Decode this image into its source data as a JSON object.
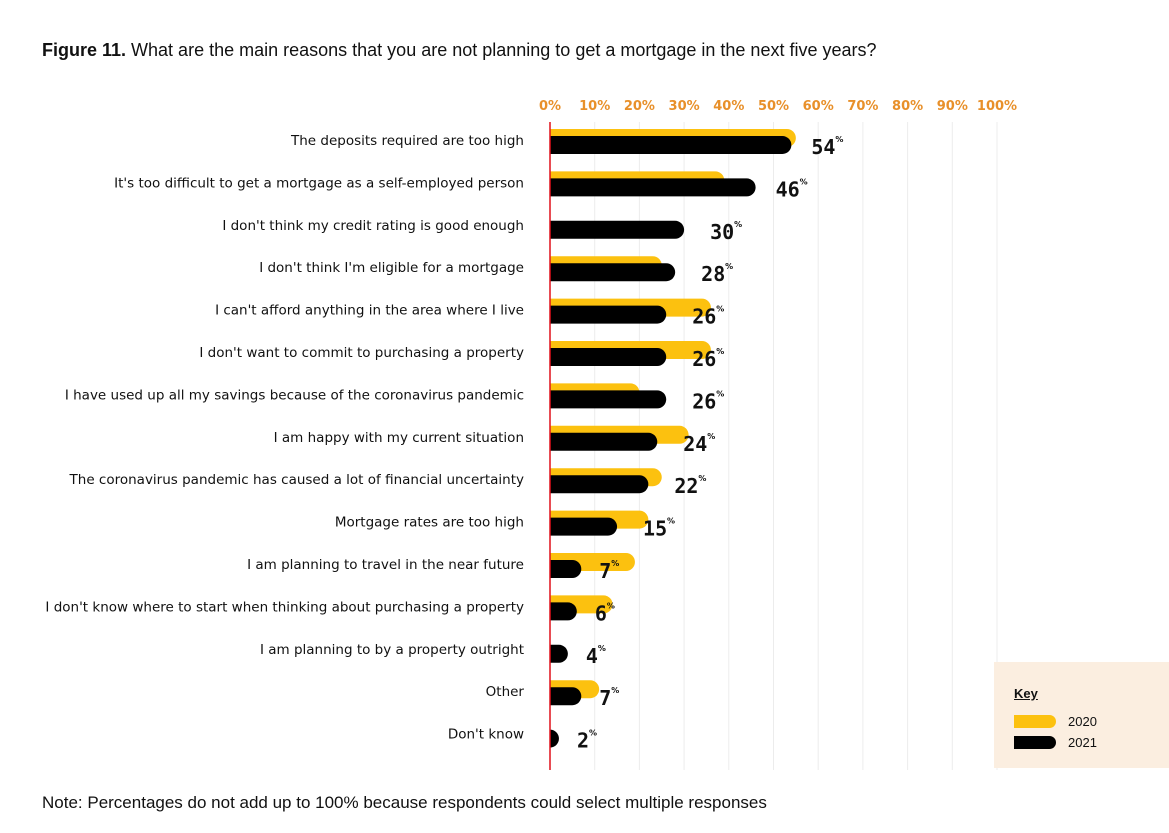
{
  "title_bold": "Figure 11.",
  "title_text": " What are the main reasons that you are not planning to get a mortgage in the next five years?",
  "note": "Note: Percentages do not add up to 100% because respondents could select multiple responses",
  "key": {
    "title": "Key",
    "items": [
      "2020",
      "2021"
    ]
  },
  "colors": {
    "2020": "#fcc10f",
    "2021": "#000000",
    "axis_ticks": "#e8902a",
    "zero_line": "#e0101a",
    "key_bg": "#fbeee0"
  },
  "chart_data": {
    "type": "bar",
    "orientation": "horizontal",
    "title": "What are the main reasons that you are not planning to get a mortgage in the next five years?",
    "xlim": [
      0,
      100
    ],
    "x_ticks": [
      "0%",
      "10%",
      "20%",
      "30%",
      "40%",
      "50%",
      "60%",
      "70%",
      "80%",
      "90%",
      "100%"
    ],
    "x_axis_position": "top",
    "grid": true,
    "legend_position": "bottom-right",
    "categories": [
      "The deposits required are too high",
      "It's too difficult to get a mortgage as a self-employed person",
      "I don't think my credit rating is good enough",
      "I don't think I'm eligible for a mortgage",
      "I can't afford anything in the area where I live",
      "I don't want to commit to purchasing a property",
      "I have used up all my savings because of the coronavirus pandemic",
      "I am happy with my current situation",
      "The coronavirus pandemic has caused a lot of financial uncertainty",
      "Mortgage rates are too high",
      "I am planning to travel in the near future",
      "I don't know where to start when thinking about purchasing a property",
      "I am planning to by a property outright",
      "Other",
      "Don't know"
    ],
    "series": [
      {
        "name": "2020",
        "values": [
          55,
          39,
          null,
          25,
          36,
          36,
          20,
          31,
          25,
          22,
          19,
          14,
          null,
          11,
          null
        ]
      },
      {
        "name": "2021",
        "values": [
          54,
          46,
          30,
          28,
          26,
          26,
          26,
          24,
          22,
          15,
          7,
          6,
          4,
          7,
          2
        ]
      }
    ],
    "data_labels": [
      "54",
      "46",
      "30",
      "28",
      "26",
      "26",
      "26",
      "24",
      "22",
      "15",
      "7",
      "6",
      "4",
      "7",
      "2"
    ],
    "data_label_unit": "%"
  }
}
